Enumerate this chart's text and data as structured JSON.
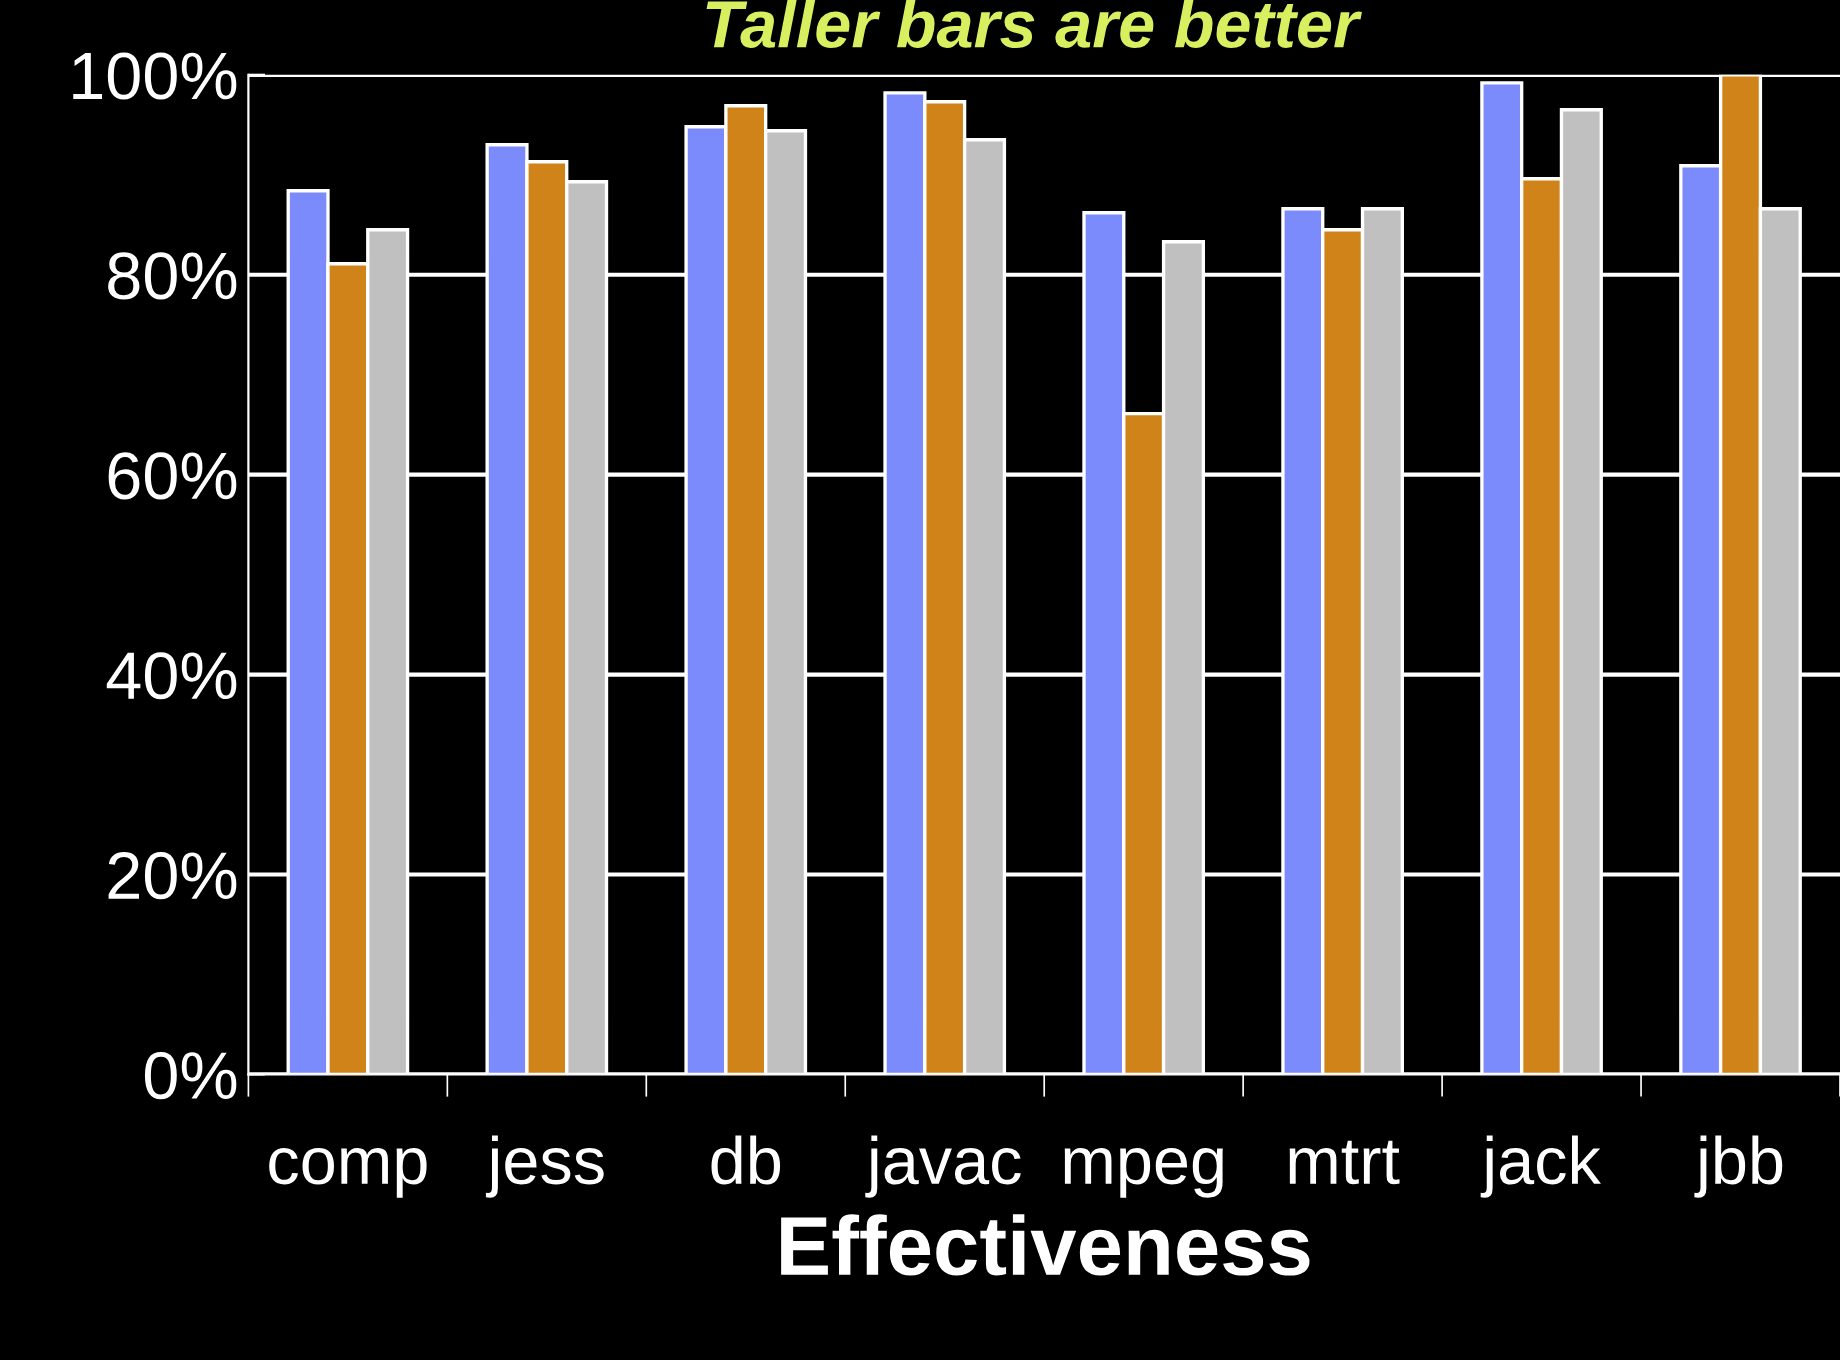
{
  "chart_data": {
    "type": "bar",
    "title": "Taller bars are better",
    "xlabel": "Effectiveness",
    "categories": [
      "comp",
      "jess",
      "db",
      "javac",
      "mpeg",
      "mtrt",
      "jack",
      "jbb"
    ],
    "series": [
      {
        "color": "#7b8bfc",
        "values": [
          88.4,
          93.0,
          94.8,
          98.2,
          86.2,
          86.6,
          99.2,
          90.9
        ]
      },
      {
        "color": "#d08318",
        "values": [
          81.1,
          91.3,
          96.9,
          97.3,
          66.1,
          84.5,
          89.6,
          100
        ]
      },
      {
        "color": "#c0c0c0",
        "values": [
          84.5,
          89.3,
          94.4,
          93.5,
          83.3,
          86.6,
          96.5,
          86.6
        ]
      }
    ],
    "ylim": [
      0,
      100
    ],
    "yticks": [
      {
        "value": 0,
        "label": "0%"
      },
      {
        "value": 20,
        "label": "20%"
      },
      {
        "value": 40,
        "label": "40%"
      },
      {
        "value": 60,
        "label": "60%"
      },
      {
        "value": 80,
        "label": "80%"
      },
      {
        "value": 100,
        "label": "100%"
      }
    ],
    "grid": "y",
    "legend": false
  }
}
